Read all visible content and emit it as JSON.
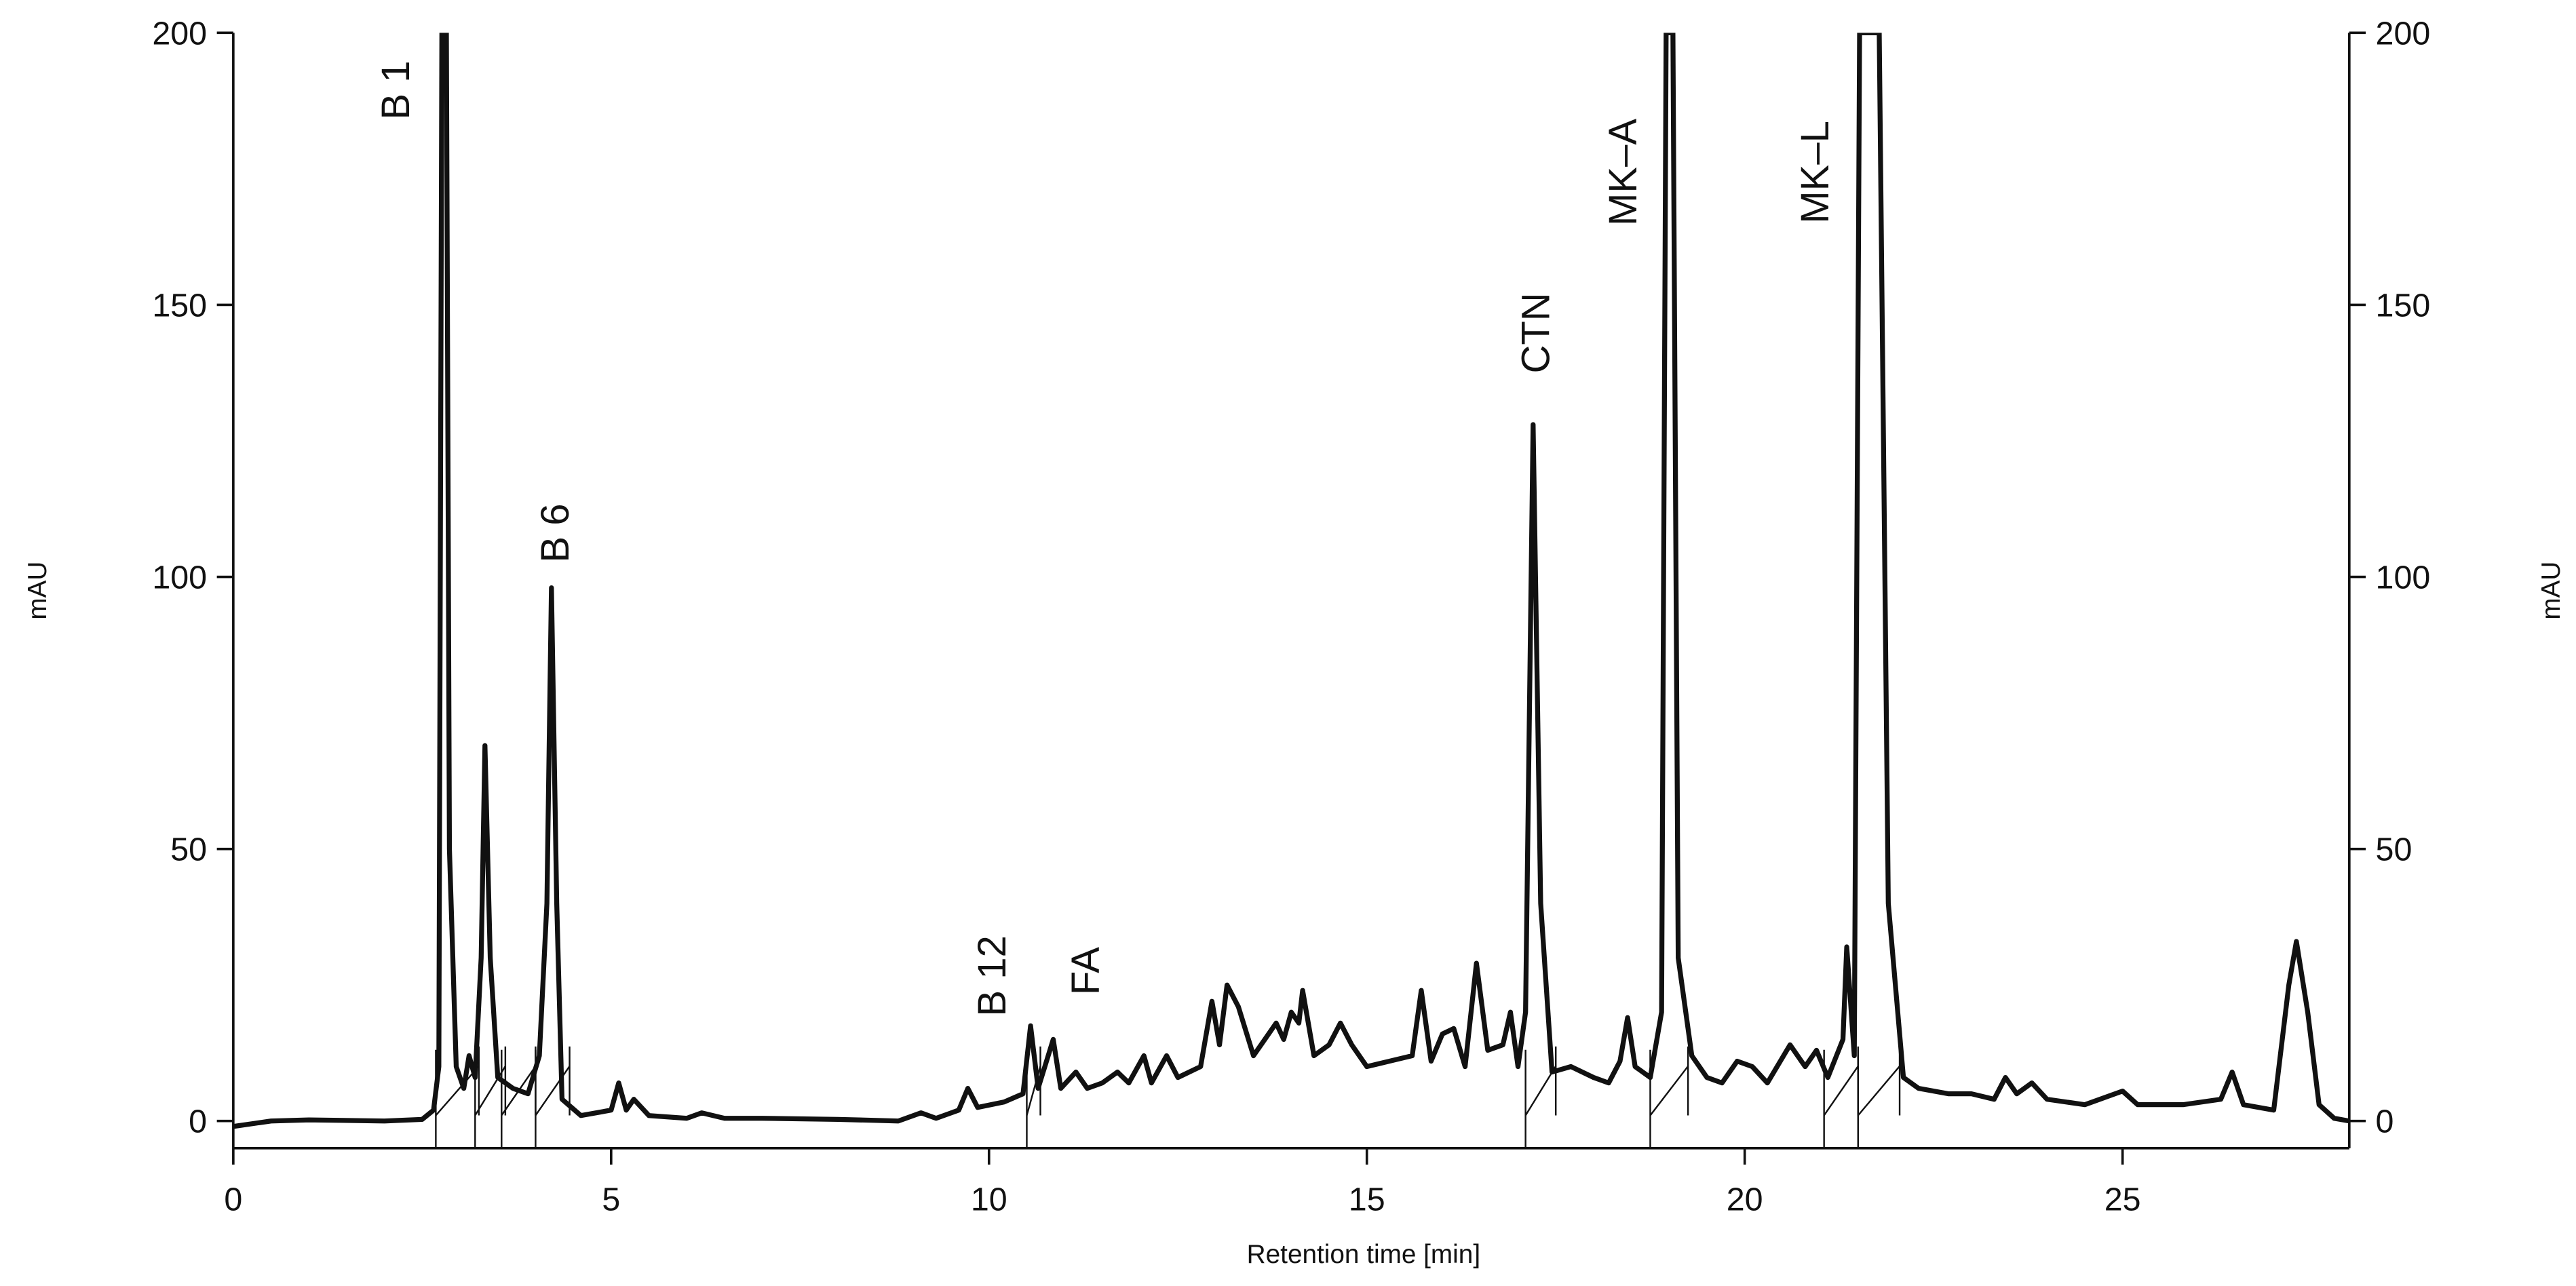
{
  "chart_data": {
    "type": "line",
    "x_label": "Retention time [min]",
    "y_label": "mAU",
    "y2_label": "mAU",
    "xlim": [
      0,
      28
    ],
    "xticks": [
      0,
      5,
      10,
      15,
      20,
      25
    ],
    "ylim": [
      -5,
      200
    ],
    "yticks": [
      0,
      50,
      100,
      150,
      200
    ],
    "y2lim": [
      -5,
      200
    ],
    "y2ticks": [
      0,
      50,
      100,
      150,
      200
    ],
    "color": "#111111",
    "annotations": [
      "B 1",
      "B 6",
      "B 12",
      "FA",
      "CTN",
      "MK–A",
      "MK–L"
    ],
    "x": [
      0,
      0.5,
      1,
      2,
      2.5,
      2.65,
      2.72,
      2.76,
      2.82,
      2.86,
      2.95,
      3.05,
      3.12,
      3.2,
      3.28,
      3.33,
      3.4,
      3.5,
      3.7,
      3.9,
      4.05,
      4.15,
      4.21,
      4.28,
      4.35,
      4.6,
      5.0,
      5.1,
      5.2,
      5.3,
      5.5,
      6,
      6.2,
      6.5,
      7,
      8,
      8.8,
      9.1,
      9.3,
      9.6,
      9.72,
      9.85,
      10.2,
      10.45,
      10.55,
      10.65,
      10.85,
      10.95,
      11.15,
      11.3,
      11.5,
      11.7,
      11.85,
      12.05,
      12.15,
      12.35,
      12.5,
      12.8,
      12.95,
      13.05,
      13.15,
      13.3,
      13.5,
      13.8,
      13.9,
      14.0,
      14.1,
      14.15,
      14.3,
      14.5,
      14.65,
      14.8,
      15.0,
      15.3,
      15.6,
      15.72,
      15.85,
      16.0,
      16.15,
      16.3,
      16.45,
      16.6,
      16.8,
      16.9,
      17.0,
      17.1,
      17.2,
      17.3,
      17.45,
      17.7,
      18.0,
      18.2,
      18.35,
      18.45,
      18.55,
      18.75,
      18.9,
      18.96,
      19.05,
      19.12,
      19.2,
      19.3,
      19.5,
      19.7,
      19.9,
      20.1,
      20.3,
      20.6,
      20.8,
      20.95,
      21.1,
      21.3,
      21.35,
      21.45,
      21.52,
      21.78,
      21.9,
      22.1,
      22.3,
      22.7,
      23.0,
      23.3,
      23.45,
      23.6,
      23.8,
      24.0,
      24.5,
      25.0,
      25.2,
      25.8,
      26.3,
      26.45,
      26.6,
      27.0,
      27.2,
      27.3,
      27.45,
      27.6,
      27.8,
      28
    ],
    "values": [
      -1,
      0,
      0.2,
      0,
      0.3,
      2,
      10,
      200,
      200,
      50,
      10,
      6,
      12,
      8,
      30,
      69,
      30,
      8,
      6,
      5,
      12,
      40,
      98,
      40,
      4,
      1,
      2,
      7,
      2,
      4,
      1,
      0.5,
      1.5,
      0.5,
      0.5,
      0.3,
      0,
      1.5,
      0.5,
      2,
      6,
      2.5,
      3.5,
      5,
      17.5,
      6,
      15,
      6,
      9,
      6,
      7,
      9,
      7,
      12,
      7,
      12,
      8,
      10,
      22,
      14,
      25,
      21,
      12,
      18,
      15,
      20,
      18,
      24,
      12,
      14,
      18,
      14,
      10,
      11,
      12,
      24,
      11,
      16,
      17,
      10,
      29,
      13,
      14,
      20,
      10,
      20,
      128,
      40,
      9,
      10,
      8,
      7,
      11,
      19,
      10,
      8,
      20,
      200,
      200,
      30,
      22,
      12,
      8,
      7,
      11,
      10,
      7,
      14,
      10,
      13,
      8,
      15,
      32,
      12,
      200,
      200,
      40,
      8,
      6,
      5,
      5,
      4,
      8,
      5,
      7,
      4,
      3,
      5.5,
      3,
      3,
      4,
      9,
      3,
      2,
      25,
      33,
      20,
      3,
      0.5,
      0
    ]
  }
}
